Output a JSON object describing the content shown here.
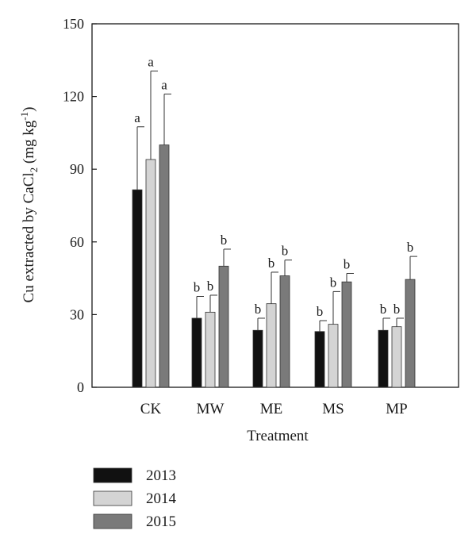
{
  "chart_data": {
    "type": "bar",
    "xlabel": "Treatment",
    "ylabel": {
      "main": "Cu extracted by CaCl",
      "sub": "2",
      "unit_open": " (mg kg",
      "sup": "-1",
      "unit_close": ")"
    },
    "ylim": [
      0,
      150
    ],
    "yticks": [
      0,
      30,
      60,
      90,
      120,
      150
    ],
    "categories": [
      "CK",
      "MW",
      "ME",
      "MS",
      "MP"
    ],
    "legend_position": "bottom-left",
    "grid": false,
    "series": [
      {
        "name": "2013",
        "color": "#111111",
        "values": [
          81.5,
          28.5,
          23.5,
          23.0,
          23.5
        ],
        "errors": [
          26.0,
          9.0,
          5.0,
          4.5,
          5.0
        ],
        "labels": [
          "a",
          "b",
          "b",
          "b",
          "b"
        ]
      },
      {
        "name": "2014",
        "color": "#d4d4d4",
        "values": [
          94.0,
          31.0,
          34.5,
          26.0,
          25.0
        ],
        "errors": [
          36.5,
          7.0,
          13.0,
          13.5,
          3.5
        ],
        "labels": [
          "a",
          "b",
          "b",
          "b",
          "b"
        ]
      },
      {
        "name": "2015",
        "color": "#7a7a7a",
        "values": [
          100.0,
          50.0,
          46.0,
          43.5,
          44.5
        ],
        "errors": [
          21.0,
          7.0,
          6.5,
          3.5,
          9.5
        ],
        "labels": [
          "a",
          "b",
          "b",
          "b",
          "b"
        ]
      }
    ]
  }
}
